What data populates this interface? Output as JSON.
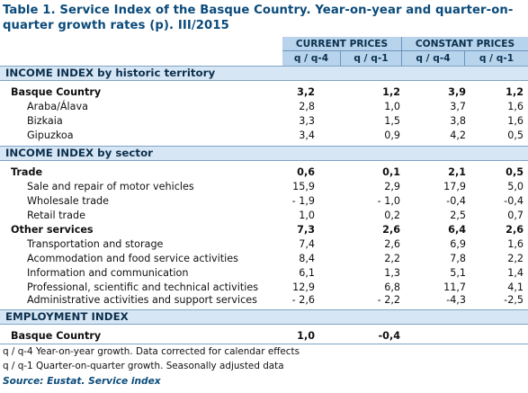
{
  "title": "Table 1. Service Index of the Basque Country. Year-on-year and quarter-on-quarter growth rates (p). III/2015",
  "header": {
    "current_prices": "CURRENT PRICES",
    "constant_prices": "CONSTANT PRICES",
    "col_q4": "q / q-4",
    "col_q1": "q / q-1"
  },
  "sections": [
    {
      "heading": "INCOME INDEX by historic territory",
      "rows": [
        {
          "label": "Basque Country",
          "main": true,
          "v": [
            "3,2",
            "1,2",
            "3,9",
            "1,2"
          ]
        },
        {
          "label": "Araba/Álava",
          "main": false,
          "v": [
            "2,8",
            "1,0",
            "3,7",
            "1,6"
          ]
        },
        {
          "label": "Bizkaia",
          "main": false,
          "v": [
            "3,3",
            "1,5",
            "3,8",
            "1,6"
          ]
        },
        {
          "label": "Gipuzkoa",
          "main": false,
          "v": [
            "3,4",
            "0,9",
            "4,2",
            "0,5"
          ]
        }
      ]
    },
    {
      "heading": "INCOME INDEX by sector",
      "rows": [
        {
          "label": "Trade",
          "main": true,
          "v": [
            "0,6",
            "0,1",
            "2,1",
            "0,5"
          ]
        },
        {
          "label": "Sale and repair of motor vehicles",
          "main": false,
          "v": [
            "15,9",
            "2,9",
            "17,9",
            "5,0"
          ]
        },
        {
          "label": "Wholesale trade",
          "main": false,
          "v": [
            "- 1,9",
            "- 1,0",
            "-0,4",
            "-0,4"
          ]
        },
        {
          "label": "Retail trade",
          "main": false,
          "v": [
            "1,0",
            "0,2",
            "2,5",
            "0,7"
          ]
        },
        {
          "label": "Other services",
          "main": true,
          "v": [
            "7,3",
            "2,6",
            "6,4",
            "2,6"
          ]
        },
        {
          "label": "Transportation and storage",
          "main": false,
          "v": [
            "7,4",
            "2,6",
            "6,9",
            "1,6"
          ]
        },
        {
          "label": "Acommodation and food service activities",
          "main": false,
          "v": [
            "8,4",
            "2,2",
            "7,8",
            "2,2"
          ]
        },
        {
          "label": "Information and communication",
          "main": false,
          "v": [
            "6,1",
            "1,3",
            "5,1",
            "1,4"
          ]
        },
        {
          "label": "Professional, scientific and technical activities",
          "main": false,
          "v": [
            "12,9",
            "6,8",
            "11,7",
            "4,1"
          ]
        },
        {
          "label": "Administrative activities and support services",
          "main": false,
          "v": [
            "- 2,6",
            "- 2,2",
            "-4,3",
            "-2,5"
          ]
        }
      ]
    },
    {
      "heading": "EMPLOYMENT INDEX",
      "rows": [
        {
          "label": "Basque Country",
          "main": true,
          "v": [
            "1,0",
            "-0,4",
            "",
            ""
          ]
        }
      ]
    }
  ],
  "notes": [
    "q / q-4 Year-on-year growth. Data corrected for calendar effects",
    "q / q-1 Quarter-on-quarter growth. Seasonally adjusted data"
  ],
  "source": "Source: Eustat. Service index"
}
